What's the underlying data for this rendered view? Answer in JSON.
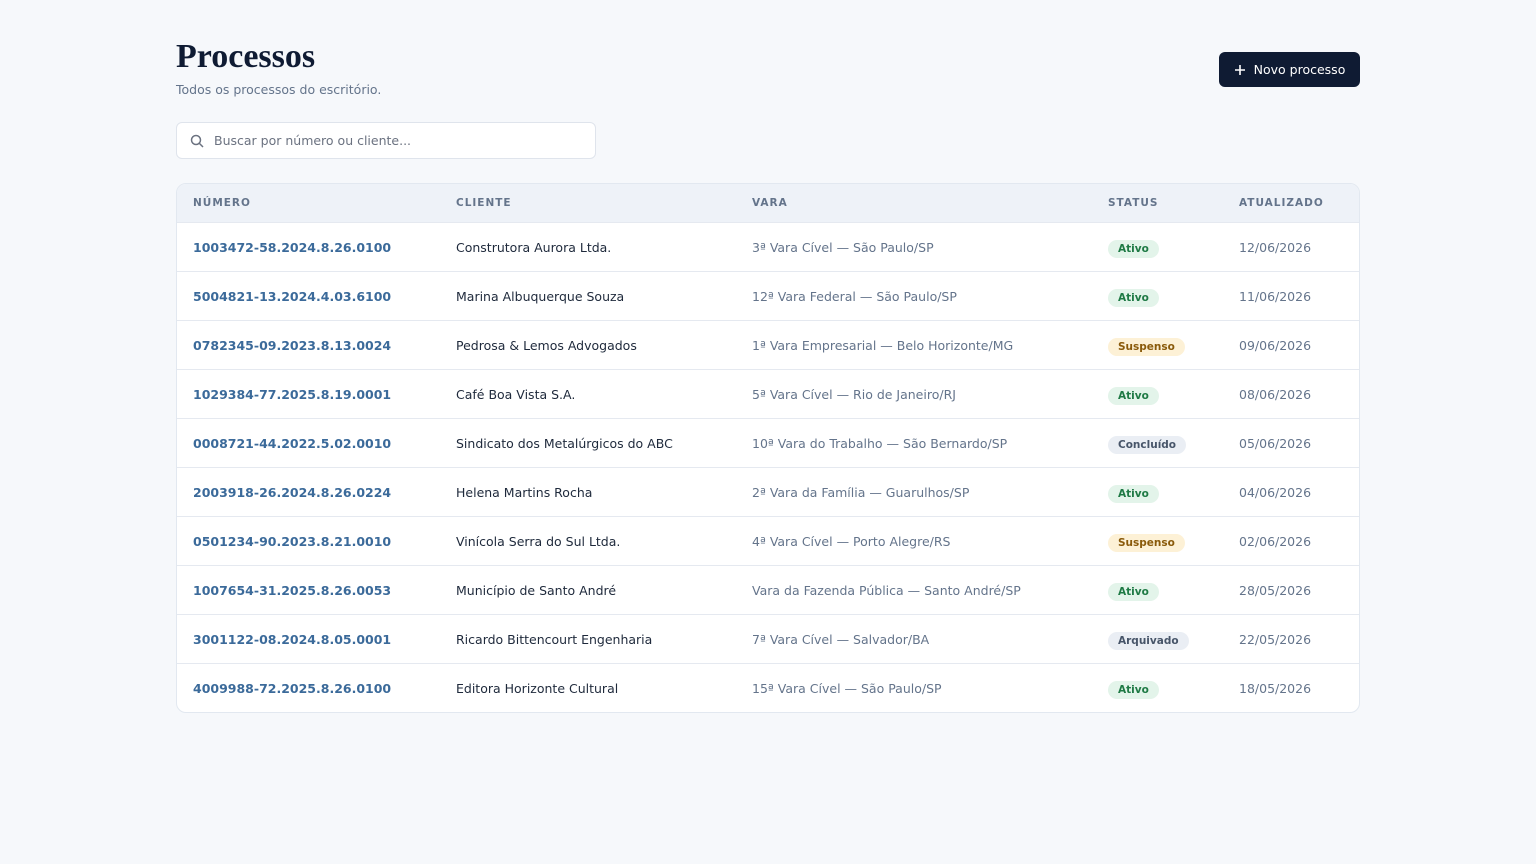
{
  "header": {
    "title": "Processos",
    "subtitle": "Todos os processos do escritório.",
    "button": "Novo processo"
  },
  "search": {
    "placeholder": "Buscar por número ou cliente..."
  },
  "table": {
    "columns": [
      "NÚMERO",
      "CLIENTE",
      "VARA",
      "STATUS",
      "ATUALIZADO"
    ],
    "rows": [
      [
        "1003472-58.2024.8.26.0100",
        "Construtora Aurora Ltda.",
        "3ª Vara Cível — São Paulo/SP",
        "Ativo",
        "12/06/2026"
      ],
      [
        "5004821-13.2024.4.03.6100",
        "Marina Albuquerque Souza",
        "12ª Vara Federal — São Paulo/SP",
        "Ativo",
        "11/06/2026"
      ],
      [
        "0782345-09.2023.8.13.0024",
        "Pedrosa & Lemos Advogados",
        "1ª Vara Empresarial — Belo Horizonte/MG",
        "Suspenso",
        "09/06/2026"
      ],
      [
        "1029384-77.2025.8.19.0001",
        "Café Boa Vista S.A.",
        "5ª Vara Cível — Rio de Janeiro/RJ",
        "Ativo",
        "08/06/2026"
      ],
      [
        "0008721-44.2022.5.02.0010",
        "Sindicato dos Metalúrgicos do ABC",
        "10ª Vara do Trabalho — São Bernardo/SP",
        "Concluído",
        "05/06/2026"
      ],
      [
        "2003918-26.2024.8.26.0224",
        "Helena Martins Rocha",
        "2ª Vara da Família — Guarulhos/SP",
        "Ativo",
        "04/06/2026"
      ],
      [
        "0501234-90.2023.8.21.0010",
        "Vinícola Serra do Sul Ltda.",
        "4ª Vara Cível — Porto Alegre/RS",
        "Suspenso",
        "02/06/2026"
      ],
      [
        "1007654-31.2025.8.26.0053",
        "Município de Santo André",
        "Vara da Fazenda Pública — Santo André/SP",
        "Ativo",
        "28/05/2026"
      ],
      [
        "3001122-08.2024.8.05.0001",
        "Ricardo Bittencourt Engenharia",
        "7ª Vara Cível — Salvador/BA",
        "Arquivado",
        "22/05/2026"
      ],
      [
        "4009988-72.2025.8.26.0100",
        "Editora Horizonte Cultural",
        "15ª Vara Cível — São Paulo/SP",
        "Ativo",
        "18/05/2026"
      ]
    ]
  }
}
